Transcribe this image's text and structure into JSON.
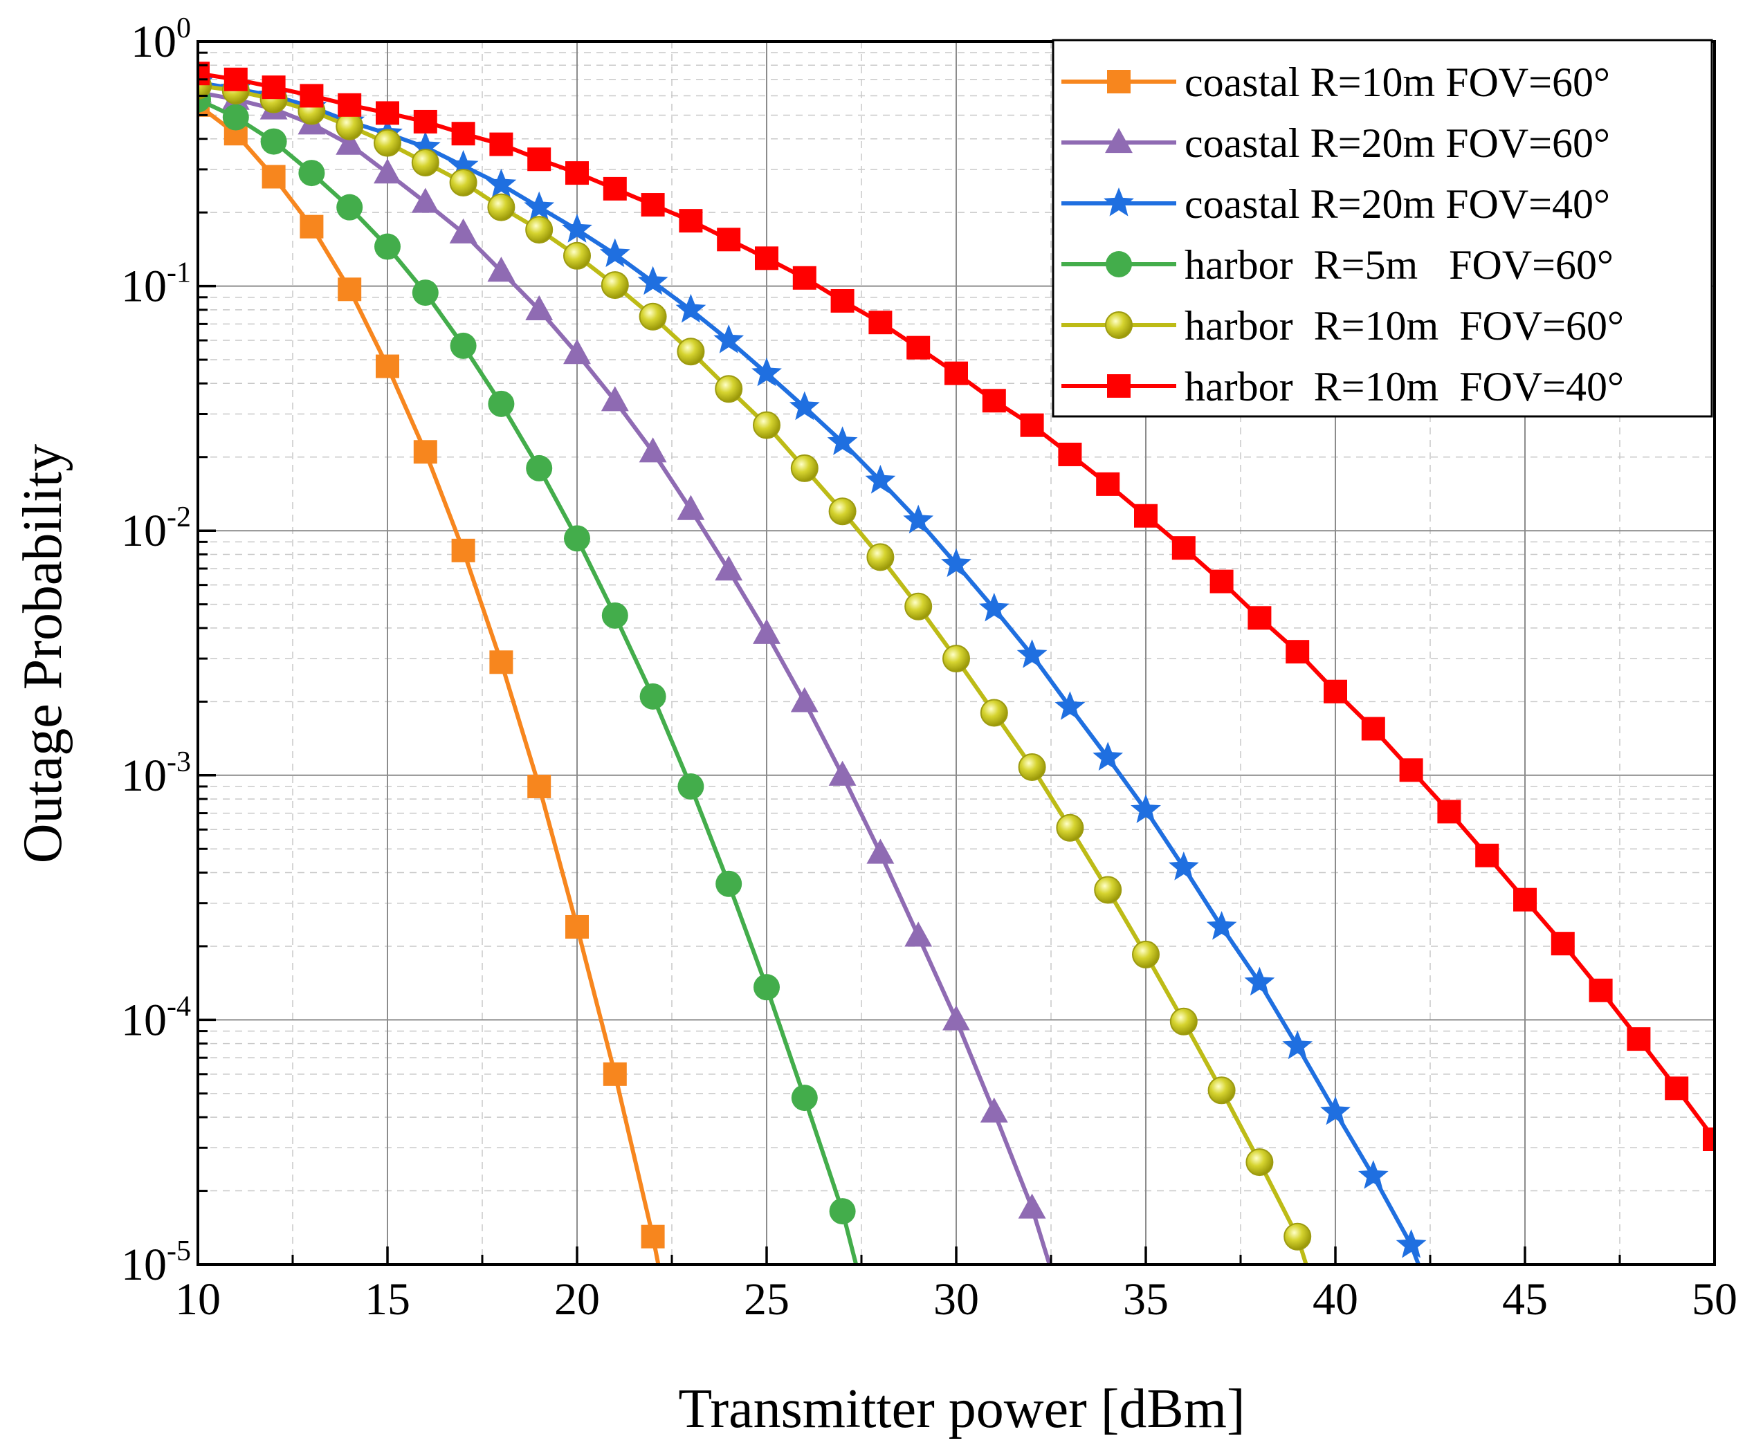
{
  "chart_data": {
    "type": "line",
    "title": "",
    "xlabel": "Transmitter power [dBm]",
    "ylabel": "Outage Probability",
    "xlim": [
      10,
      50
    ],
    "ylim": [
      1e-05,
      1
    ],
    "yscale": "log",
    "grid": true,
    "legend_position": "top-right",
    "x_ticks": [
      "10",
      "15",
      "20",
      "25",
      "30",
      "35",
      "40",
      "45",
      "50"
    ],
    "y_ticks": [
      {
        "base": "10",
        "exp": "0"
      },
      {
        "base": "10",
        "exp": "-1"
      },
      {
        "base": "10",
        "exp": "-2"
      },
      {
        "base": "10",
        "exp": "-3"
      },
      {
        "base": "10",
        "exp": "-4"
      },
      {
        "base": "10",
        "exp": "-5"
      }
    ],
    "series": [
      {
        "name": "coastal R=10m FOV=60°",
        "color": "#f7861e",
        "marker": "square",
        "x": [
          10,
          11,
          12,
          13,
          14,
          15,
          16,
          17,
          18,
          19,
          20,
          21,
          22
        ],
        "y": [
          0.55,
          0.42,
          0.28,
          0.175,
          0.097,
          0.047,
          0.021,
          0.0083,
          0.0029,
          0.0009,
          0.00024,
          6e-05,
          1.3e-05
        ],
        "line_end": [
          22.3,
          7.5e-06
        ]
      },
      {
        "name": "coastal R=20m FOV=60°",
        "color": "#8f6bb3",
        "marker": "triangle",
        "x": [
          10,
          11,
          12,
          13,
          14,
          15,
          16,
          17,
          18,
          19,
          20,
          21,
          22,
          23,
          24,
          25,
          26,
          27,
          28,
          29,
          30,
          31,
          32
        ],
        "y": [
          0.62,
          0.58,
          0.53,
          0.46,
          0.38,
          0.29,
          0.22,
          0.165,
          0.115,
          0.08,
          0.053,
          0.034,
          0.021,
          0.0122,
          0.0069,
          0.0038,
          0.002,
          0.001,
          0.00048,
          0.00022,
          0.0001,
          4.2e-05,
          1.7e-05
        ],
        "line_end": [
          32.6,
          8.5e-06
        ]
      },
      {
        "name": "coastal R=20m FOV=40°",
        "color": "#1f6fe0",
        "marker": "star",
        "x": [
          10,
          11,
          12,
          13,
          14,
          15,
          16,
          17,
          18,
          19,
          20,
          21,
          22,
          23,
          24,
          25,
          26,
          27,
          28,
          29,
          30,
          31,
          32,
          33,
          34,
          35,
          36,
          37,
          38,
          39,
          40,
          41,
          42
        ],
        "y": [
          0.68,
          0.64,
          0.6,
          0.54,
          0.47,
          0.42,
          0.37,
          0.31,
          0.26,
          0.21,
          0.17,
          0.135,
          0.104,
          0.08,
          0.06,
          0.044,
          0.032,
          0.023,
          0.016,
          0.011,
          0.0073,
          0.0048,
          0.0031,
          0.0019,
          0.00118,
          0.00072,
          0.00042,
          0.00024,
          0.000142,
          7.8e-05,
          4.2e-05,
          2.3e-05,
          1.2e-05
        ],
        "line_end": [
          42.4,
          8.2e-06
        ]
      },
      {
        "name": "harbor  R=5m   FOV=60°",
        "color": "#43ad4b",
        "marker": "circle",
        "x": [
          10,
          11,
          12,
          13,
          14,
          15,
          16,
          17,
          18,
          19,
          20,
          21,
          22,
          23,
          24,
          25,
          26,
          27
        ],
        "y": [
          0.58,
          0.49,
          0.39,
          0.29,
          0.21,
          0.145,
          0.094,
          0.057,
          0.033,
          0.018,
          0.0093,
          0.0045,
          0.0021,
          0.0009,
          0.00036,
          0.000136,
          4.8e-05,
          1.65e-05
        ],
        "line_end": [
          27.5,
          8.2e-06
        ]
      },
      {
        "name": "harbor  R=10m  FOV=60°",
        "color": "#bdbb16",
        "marker": "sphere",
        "x": [
          10,
          11,
          12,
          13,
          14,
          15,
          16,
          17,
          18,
          19,
          20,
          21,
          22,
          23,
          24,
          25,
          26,
          27,
          28,
          29,
          30,
          31,
          32,
          33,
          34,
          35,
          36,
          37,
          38,
          39
        ],
        "y": [
          0.66,
          0.63,
          0.58,
          0.52,
          0.45,
          0.385,
          0.32,
          0.265,
          0.21,
          0.17,
          0.133,
          0.101,
          0.075,
          0.054,
          0.038,
          0.027,
          0.018,
          0.012,
          0.0078,
          0.0049,
          0.003,
          0.0018,
          0.00108,
          0.00061,
          0.00034,
          0.000185,
          9.85e-05,
          5.15e-05,
          2.62e-05,
          1.3e-05
        ],
        "line_end": [
          39.4,
          8.2e-06
        ]
      },
      {
        "name": "harbor  R=10m  FOV=40°",
        "color": "#ff0000",
        "marker": "square",
        "x": [
          10,
          11,
          12,
          13,
          14,
          15,
          16,
          17,
          18,
          19,
          20,
          21,
          22,
          23,
          24,
          25,
          26,
          27,
          28,
          29,
          30,
          31,
          32,
          33,
          34,
          35,
          36,
          37,
          38,
          39,
          40,
          41,
          42,
          43,
          44,
          45,
          46,
          47,
          48,
          49,
          50
        ],
        "y": [
          0.74,
          0.7,
          0.65,
          0.6,
          0.55,
          0.51,
          0.47,
          0.42,
          0.38,
          0.33,
          0.29,
          0.25,
          0.215,
          0.185,
          0.155,
          0.13,
          0.108,
          0.087,
          0.071,
          0.056,
          0.044,
          0.034,
          0.027,
          0.0205,
          0.0155,
          0.0115,
          0.0085,
          0.0062,
          0.0044,
          0.0032,
          0.0022,
          0.00155,
          0.00105,
          0.00071,
          0.00047,
          0.00031,
          0.000205,
          0.000132,
          8.35e-05,
          5.25e-05,
          3.25e-05
        ]
      }
    ]
  }
}
